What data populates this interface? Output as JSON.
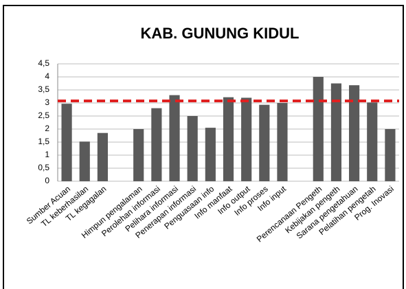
{
  "chart_data": {
    "type": "bar",
    "title": "KAB. GUNUNG KIDUL",
    "categories": [
      "Sumber Acuan",
      "TL keberhasilan",
      "TL kegagalan",
      null,
      "Himpun pengalaman",
      "Perolehan informasi",
      "Pelihara informasi",
      "Penerapan informasi",
      "Penguasaan info",
      "Info manfaat",
      "Info output",
      "Info proses",
      "Info input",
      null,
      "Perencanaan Pengeth",
      "Kebijakan pengeth",
      "Sarana pengetahuan",
      "Pelatihan pengetah",
      "Prog. Inovasi"
    ],
    "values": [
      2.97,
      1.52,
      1.85,
      null,
      2.0,
      2.8,
      3.3,
      2.5,
      2.05,
      3.22,
      3.2,
      2.93,
      3.0,
      null,
      4.0,
      3.75,
      3.68,
      3.02,
      2.0
    ],
    "color": "#5a5a5a",
    "reference_line": 3.08,
    "reference_color": "#e02020",
    "ylim": [
      0,
      4.5
    ],
    "yticks": [
      0,
      {
        "value": 0.5,
        "label": "0,5"
      },
      1,
      {
        "value": 1.5,
        "label": "1,5"
      },
      2,
      {
        "value": 2.5,
        "label": "2,5"
      },
      3,
      {
        "value": 3.5,
        "label": "3,5"
      },
      4,
      {
        "value": 4.5,
        "label": "4,5"
      }
    ],
    "grid": true
  }
}
